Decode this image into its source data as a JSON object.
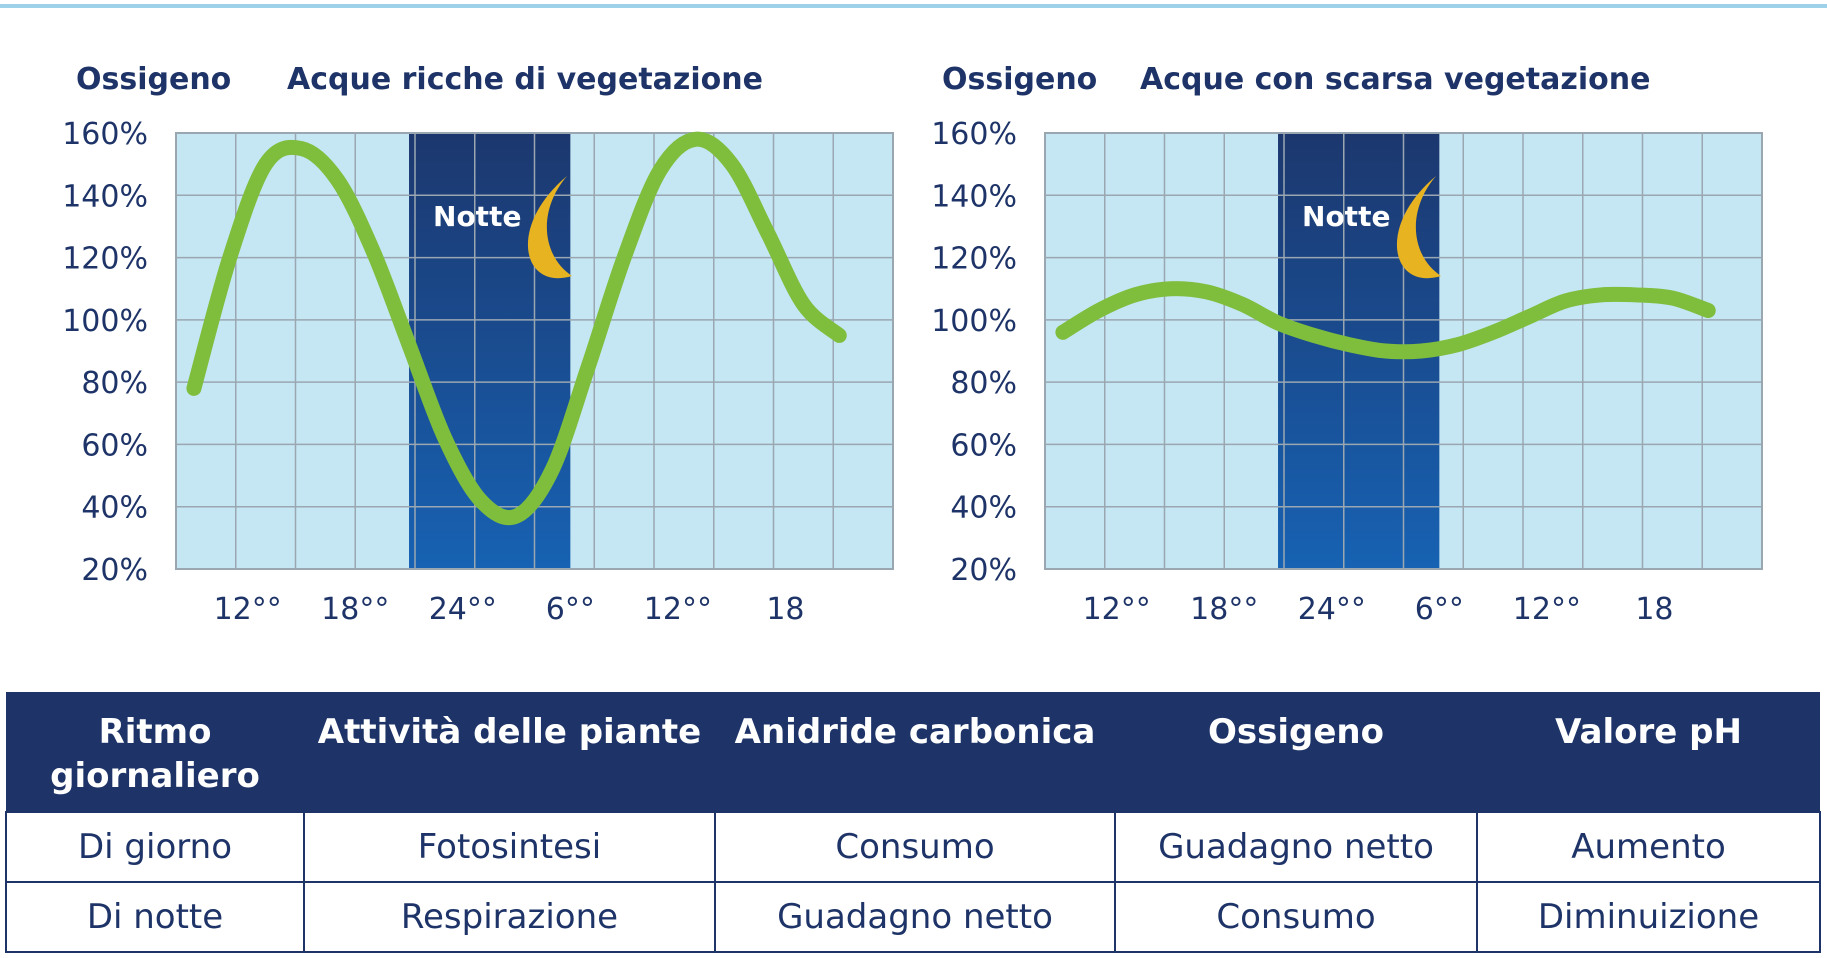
{
  "chart_data": [
    {
      "type": "line",
      "title": "Acque ricche di vegetazione",
      "ylabel": "Ossigeno",
      "xlabel": "",
      "ylim": [
        20,
        160
      ],
      "yticks": [
        "160%",
        "140%",
        "120%",
        "100%",
        "80%",
        "60%",
        "40%",
        "20%"
      ],
      "xticks": [
        "12°°",
        "18°°",
        "24°°",
        "6°°",
        "12°°",
        "18"
      ],
      "annotation": "Notte",
      "night_span": [
        21,
        30
      ],
      "grid": true,
      "colors": {
        "plot_bg": "#c5e6f3",
        "grid": "#9aa7b1",
        "line": "#7fbe3c",
        "night_top": "#1c376e",
        "night_bottom": "#1762b3",
        "moon": "#e8b321"
      },
      "series": [
        {
          "x": [
            9,
            11,
            13,
            15,
            17,
            19,
            21,
            23,
            25,
            27,
            29,
            31,
            33,
            35,
            37,
            39,
            41,
            43,
            45
          ],
          "values": [
            78,
            120,
            150,
            155,
            145,
            122,
            92,
            62,
            42,
            37,
            52,
            85,
            120,
            148,
            158,
            150,
            128,
            105,
            95
          ]
        }
      ]
    },
    {
      "type": "line",
      "title": "Acque con scarsa vegetazione",
      "ylabel": "Ossigeno",
      "xlabel": "",
      "ylim": [
        20,
        160
      ],
      "yticks": [
        "160%",
        "140%",
        "120%",
        "100%",
        "80%",
        "60%",
        "40%",
        "20%"
      ],
      "xticks": [
        "12°°",
        "18°°",
        "24°°",
        "6°°",
        "12°°",
        "18"
      ],
      "annotation": "Notte",
      "night_span": [
        21,
        30
      ],
      "grid": true,
      "colors": {
        "plot_bg": "#c5e6f3",
        "grid": "#9aa7b1",
        "line": "#7fbe3c",
        "night_top": "#1c376e",
        "night_bottom": "#1762b3",
        "moon": "#e8b321"
      },
      "series": [
        {
          "x": [
            9,
            11,
            13,
            15,
            17,
            19,
            21,
            23,
            25,
            27,
            29,
            31,
            33,
            35,
            37,
            39,
            41,
            43,
            45
          ],
          "values": [
            96,
            103,
            108,
            110,
            109,
            105,
            99,
            95,
            92,
            90,
            90,
            92,
            96,
            101,
            106,
            108,
            108,
            107,
            103
          ]
        }
      ]
    }
  ],
  "table": {
    "headers": [
      "Ritmo giornaliero",
      "Attività delle piante",
      "Anidride carbonica",
      "Ossigeno",
      "Valore pH"
    ],
    "rows": [
      [
        "Di giorno",
        "Fotosintesi",
        "Consumo",
        "Guadagno netto",
        "Aumento"
      ],
      [
        "Di notte",
        "Respirazione",
        "Guadagno netto",
        "Consumo",
        "Diminuizione"
      ]
    ],
    "colors": {
      "header_bg": "#1e3468",
      "header_text": "#ffffff",
      "cell_text": "#1e3468",
      "border": "#1e3468"
    }
  }
}
